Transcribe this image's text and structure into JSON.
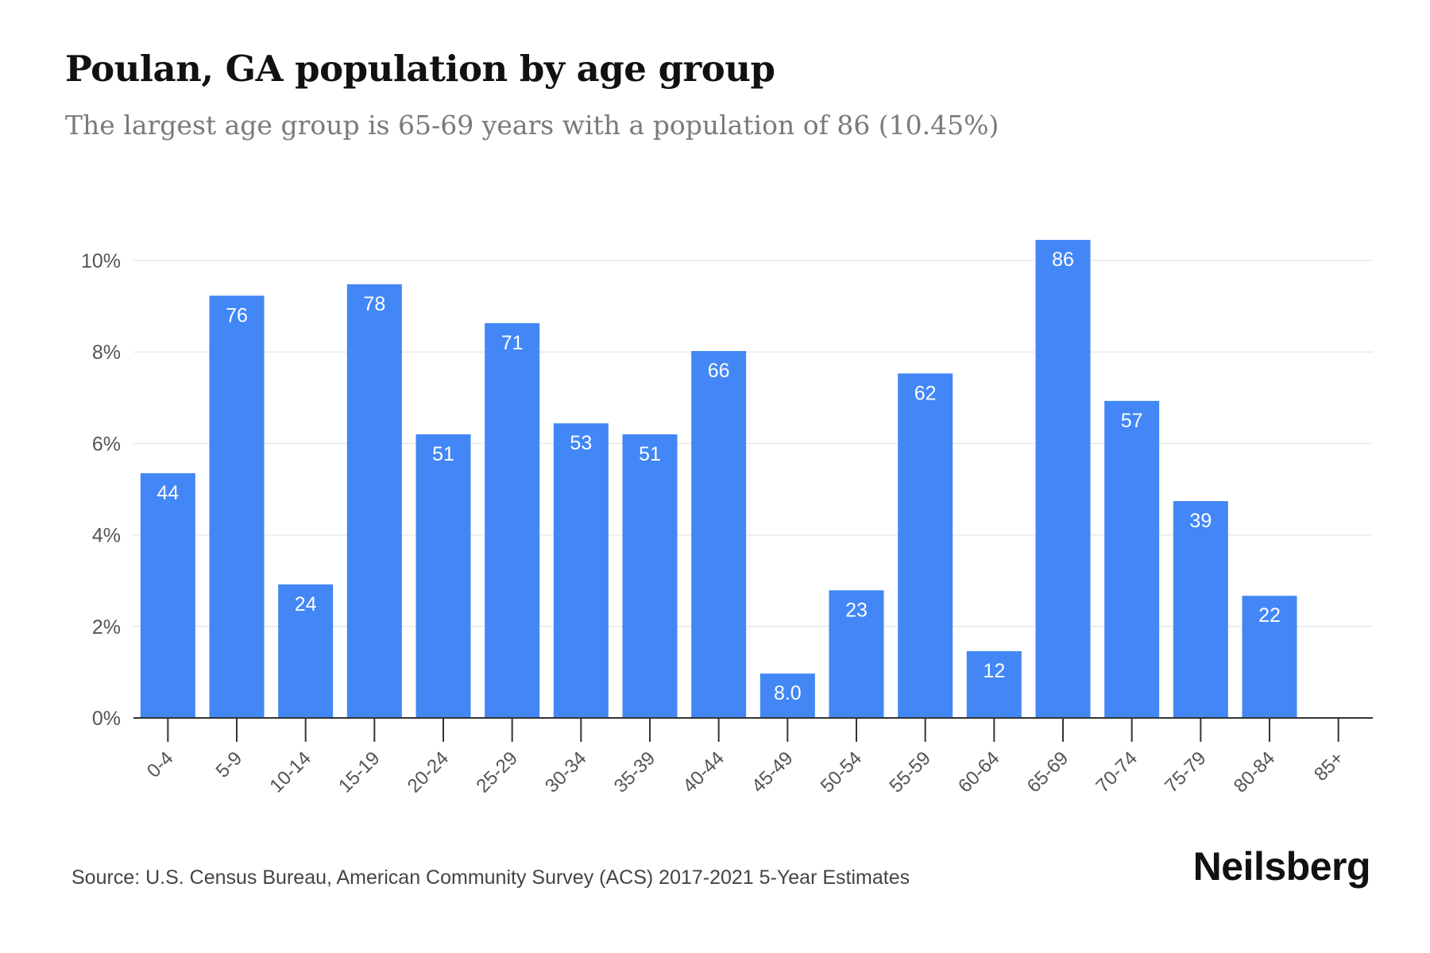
{
  "title": "Poulan, GA population by age group",
  "subtitle": "The largest age group is 65-69 years with a population of 86 (10.45%)",
  "source": "Source: U.S. Census Bureau, American Community Survey (ACS) 2017-2021 5-Year Estimates",
  "brand": "Neilsberg",
  "colors": {
    "bar": "#4287f5",
    "bar_label": "#ffffff",
    "grid": "#e9e9e9",
    "axis": "#333333",
    "tick_text": "#555555"
  },
  "chart_data": {
    "type": "bar",
    "categories": [
      "0-4",
      "5-9",
      "10-14",
      "15-19",
      "20-24",
      "25-29",
      "30-34",
      "35-39",
      "40-44",
      "45-49",
      "50-54",
      "55-59",
      "60-64",
      "65-69",
      "70-74",
      "75-79",
      "80-84",
      "85+"
    ],
    "values": [
      5.35,
      9.23,
      2.92,
      9.48,
      6.2,
      8.63,
      6.44,
      6.2,
      8.02,
      0.97,
      2.79,
      7.53,
      1.46,
      10.45,
      6.93,
      4.74,
      2.67,
      0
    ],
    "data_labels": [
      "44",
      "76",
      "24",
      "78",
      "51",
      "71",
      "53",
      "51",
      "66",
      "8.0",
      "23",
      "62",
      "12",
      "86",
      "57",
      "39",
      "22",
      ""
    ],
    "y_ticks": [
      0,
      2,
      4,
      6,
      8,
      10
    ],
    "y_tick_labels": [
      "0%",
      "2%",
      "4%",
      "6%",
      "8%",
      "10%"
    ],
    "ylim": [
      0,
      10.5
    ],
    "grid": true,
    "xlabel": "",
    "ylabel": ""
  }
}
